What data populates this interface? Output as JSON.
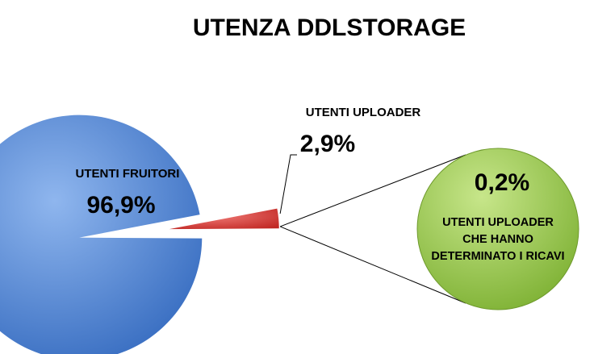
{
  "chart_data": {
    "type": "pie-of-pie",
    "title": "UTENZA DDLSTORAGE",
    "categories": [
      "UTENTI FRUITORI",
      "UTENTI UPLOADER",
      "UTENTI UPLOADER\nCHE HANNO\nDETERMINATO I RICAVI"
    ],
    "values": [
      96.9,
      2.9,
      0.2
    ],
    "value_labels": [
      "96,9%",
      "2,9%",
      "0,2%"
    ],
    "colors": [
      "#4a80d2",
      "#d23a36",
      "#94c447"
    ]
  }
}
